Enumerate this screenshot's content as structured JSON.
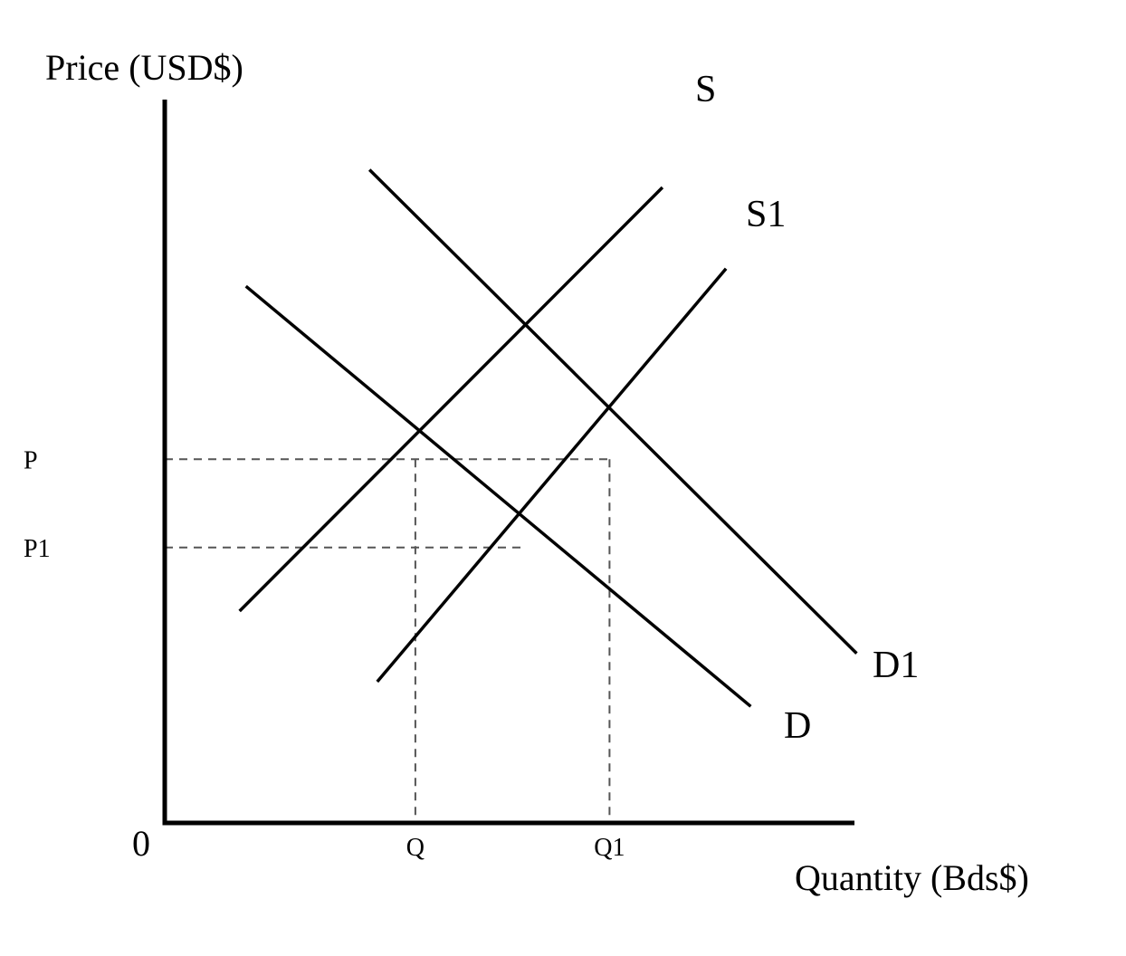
{
  "chart_data": {
    "type": "line",
    "title": "",
    "ylabel": "Price (USD$)",
    "xlabel": "Quantity (Bds$)",
    "origin_label": "0",
    "grid": false,
    "xlim": [
      0,
      10
    ],
    "ylim": [
      0,
      10
    ],
    "series": [
      {
        "name": "S",
        "kind": "supply",
        "points": [
          [
            1.06,
            3.0
          ],
          [
            7.05,
            9.0
          ]
        ]
      },
      {
        "name": "S1",
        "kind": "supply",
        "points": [
          [
            3.01,
            2.0
          ],
          [
            7.95,
            7.85
          ]
        ]
      },
      {
        "name": "D",
        "kind": "demand",
        "points": [
          [
            1.15,
            7.6
          ],
          [
            8.3,
            1.65
          ]
        ]
      },
      {
        "name": "D1",
        "kind": "demand",
        "points": [
          [
            2.9,
            9.25
          ],
          [
            9.8,
            2.4
          ]
        ]
      }
    ],
    "reference_lines": [
      {
        "label": "P",
        "axis": "y",
        "value": 5.15,
        "x_end": 6.3
      },
      {
        "label": "P1",
        "axis": "y",
        "value": 3.9,
        "x_end": 5.1
      },
      {
        "label": "Q",
        "axis": "x",
        "value": 3.55,
        "y_end": 5.15
      },
      {
        "label": "Q1",
        "axis": "x",
        "value": 6.3,
        "y_end": 5.15
      }
    ]
  }
}
